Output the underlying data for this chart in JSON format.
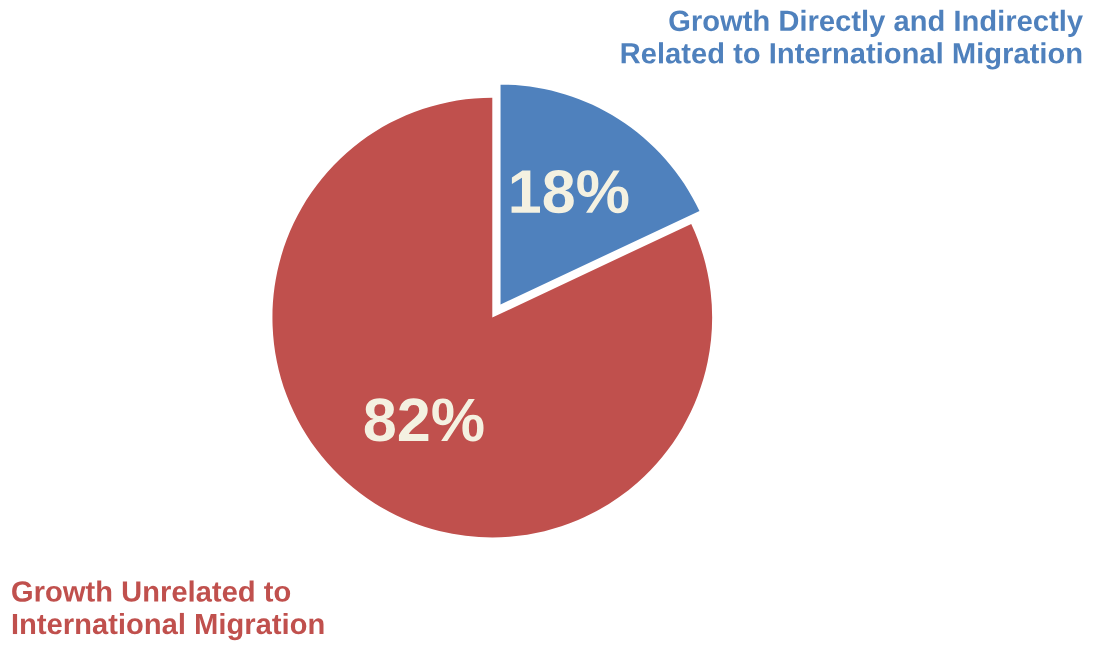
{
  "chart_data": {
    "type": "pie",
    "categories": [
      "Growth Directly and Indirectly\nRelated to International Migration",
      "Growth Unrelated to\nInternational Migration"
    ],
    "values": [
      18,
      82
    ],
    "colors": [
      "#4f81bd",
      "#c0504d"
    ],
    "value_labels": [
      "18%",
      "82%"
    ]
  }
}
